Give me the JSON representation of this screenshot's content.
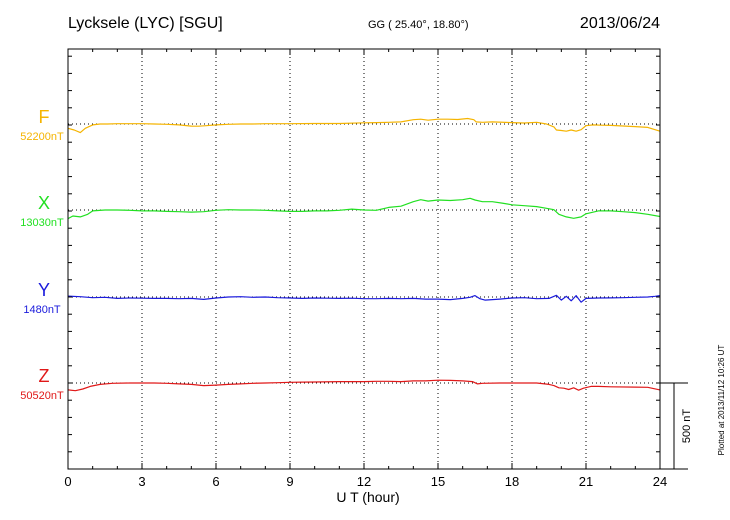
{
  "header": {
    "station": "Lycksele (LYC)  [SGU]",
    "coords": "GG ( 25.40°,  18.80°)",
    "date": "2013/06/24"
  },
  "footer": {
    "plotted": "Plotted at 2013/11/12 10:26 UT",
    "scale_label": "500 nT"
  },
  "chart_data": {
    "type": "line",
    "xlabel": "U T (hour)",
    "xlim": [
      0,
      24
    ],
    "xticks": [
      0,
      3,
      6,
      9,
      12,
      15,
      18,
      21,
      24
    ],
    "ylabel": "",
    "units": "nT",
    "scale_bar_nT": 500,
    "grid": "dotted",
    "series": [
      {
        "name": "F",
        "baseline_label": "52200nT",
        "baseline": 52200,
        "color": "#f5b400",
        "x": [
          0,
          0.25,
          0.5,
          0.7,
          1,
          1.3,
          1.6,
          2,
          2.5,
          3,
          3.5,
          4,
          4.5,
          5,
          5.3,
          5.6,
          6,
          6.5,
          7,
          7.5,
          8,
          9,
          10,
          11,
          12,
          12.5,
          13,
          13.5,
          14,
          14.3,
          14.6,
          15,
          15.4,
          15.8,
          16.2,
          16.45,
          16.55,
          16.8,
          17.2,
          18,
          18.5,
          19,
          19.4,
          19.7,
          19.8,
          20,
          20.2,
          20.4,
          20.6,
          20.8,
          21,
          21.3,
          21.6,
          22,
          23,
          23.5,
          24
        ],
        "values": [
          52175,
          52165,
          52150,
          52175,
          52195,
          52200,
          52200,
          52202,
          52202,
          52202,
          52200,
          52198,
          52195,
          52188,
          52187,
          52190,
          52195,
          52198,
          52200,
          52200,
          52202,
          52202,
          52203,
          52203,
          52207,
          52208,
          52210,
          52212,
          52225,
          52228,
          52222,
          52228,
          52228,
          52226,
          52232,
          52225,
          52212,
          52210,
          52212,
          52208,
          52206,
          52210,
          52200,
          52183,
          52165,
          52162,
          52158,
          52165,
          52158,
          52167,
          52190,
          52195,
          52193,
          52192,
          52185,
          52180,
          52158
        ]
      },
      {
        "name": "X",
        "baseline_label": "13030nT",
        "baseline": 13030,
        "color": "#22e022",
        "x": [
          0,
          0.2,
          0.5,
          0.8,
          1,
          1.5,
          2,
          2.5,
          3,
          3.5,
          4,
          4.5,
          5,
          5.5,
          6,
          6.5,
          7,
          7.5,
          8,
          8.5,
          9,
          9.5,
          10,
          10.5,
          11,
          11.5,
          12,
          12.5,
          13,
          13.5,
          14,
          14.3,
          14.6,
          15,
          15.5,
          16,
          16.3,
          16.5,
          16.8,
          17.2,
          17.6,
          18,
          18.5,
          19,
          19.4,
          19.7,
          19.9,
          20.2,
          20.5,
          20.8,
          21,
          21.5,
          22,
          22.5,
          23,
          23.5,
          24
        ],
        "values": [
          12980,
          12995,
          12990,
          13005,
          13025,
          13030,
          13030,
          13028,
          13025,
          13025,
          13022,
          13020,
          13018,
          13020,
          13028,
          13032,
          13030,
          13030,
          13028,
          13025,
          13022,
          13022,
          13025,
          13025,
          13028,
          13035,
          13030,
          13028,
          13045,
          13052,
          13078,
          13090,
          13082,
          13088,
          13085,
          13090,
          13098,
          13088,
          13078,
          13078,
          13070,
          13060,
          13055,
          13050,
          13040,
          13032,
          13005,
          12990,
          12982,
          12990,
          13008,
          13025,
          13025,
          13020,
          13015,
          13005,
          12992
        ]
      },
      {
        "name": "Y",
        "baseline_label": "1480nT",
        "baseline": 1480,
        "color": "#1a1adc",
        "x": [
          0,
          0.5,
          1,
          1.5,
          2,
          2.5,
          3,
          3.5,
          4,
          4.5,
          5,
          5.5,
          6,
          6.5,
          7,
          7.5,
          8,
          8.5,
          9,
          9.5,
          10,
          10.5,
          11,
          11.5,
          12,
          12.5,
          13,
          13.5,
          14,
          14.5,
          15,
          15.5,
          16,
          16.3,
          16.5,
          16.7,
          16.9,
          17.2,
          17.5,
          18,
          18.5,
          19,
          19.5,
          19.8,
          20,
          20.2,
          20.4,
          20.6,
          20.8,
          21,
          21.5,
          22,
          22.5,
          23,
          23.5,
          23.8,
          24
        ],
        "values": [
          1485,
          1482,
          1476,
          1478,
          1472,
          1474,
          1473,
          1472,
          1472,
          1470,
          1472,
          1466,
          1474,
          1480,
          1482,
          1478,
          1480,
          1476,
          1474,
          1472,
          1474,
          1473,
          1472,
          1473,
          1470,
          1470,
          1472,
          1470,
          1472,
          1468,
          1468,
          1465,
          1472,
          1478,
          1488,
          1470,
          1462,
          1465,
          1468,
          1474,
          1476,
          1470,
          1472,
          1490,
          1462,
          1484,
          1458,
          1488,
          1450,
          1472,
          1474,
          1475,
          1476,
          1478,
          1480,
          1484,
          1488
        ]
      },
      {
        "name": "Z",
        "baseline_label": "50520nT",
        "baseline": 50520,
        "color": "#e01818",
        "x": [
          0,
          0.3,
          0.6,
          0.9,
          1.3,
          1.8,
          2.5,
          3,
          3.5,
          4,
          4.5,
          5,
          5.5,
          6,
          6.5,
          7,
          7.5,
          8,
          8.5,
          9,
          9.5,
          10,
          11,
          12,
          12.5,
          13,
          13.5,
          14,
          14.5,
          15,
          15.5,
          16,
          16.4,
          16.6,
          16.8,
          17.5,
          18,
          19,
          19.5,
          19.7,
          19.9,
          20.1,
          20.3,
          20.5,
          20.7,
          20.9,
          21.2,
          21.5,
          22,
          23,
          23.5,
          24
        ],
        "values": [
          50480,
          50475,
          50485,
          50500,
          50512,
          50518,
          50520,
          50520,
          50520,
          50518,
          50515,
          50512,
          50505,
          50508,
          50512,
          50515,
          50518,
          50520,
          50522,
          50524,
          50525,
          50526,
          50528,
          50528,
          50530,
          50530,
          50528,
          50532,
          50532,
          50536,
          50535,
          50532,
          50528,
          50515,
          50518,
          50520,
          50520,
          50520,
          50512,
          50505,
          50492,
          50490,
          50482,
          50492,
          50478,
          50490,
          50500,
          50500,
          50498,
          50496,
          50495,
          50480
        ]
      }
    ]
  }
}
